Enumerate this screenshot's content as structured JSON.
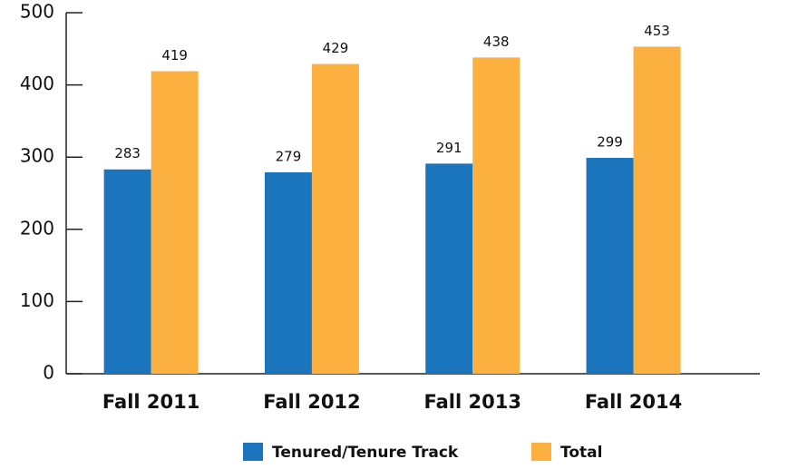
{
  "chart_data": {
    "type": "bar",
    "categories": [
      "Fall 2011",
      "Fall 2012",
      "Fall 2013",
      "Fall 2014"
    ],
    "series": [
      {
        "name": "Tenured/Tenure Track",
        "color": "#1a75bc",
        "values": [
          283,
          279,
          291,
          299
        ]
      },
      {
        "name": "Total",
        "color": "#fbb040",
        "values": [
          419,
          429,
          438,
          453
        ]
      }
    ],
    "ylim": [
      0,
      500
    ],
    "yticks": [
      0,
      100,
      200,
      300,
      400,
      500
    ],
    "legend": "bottom"
  }
}
